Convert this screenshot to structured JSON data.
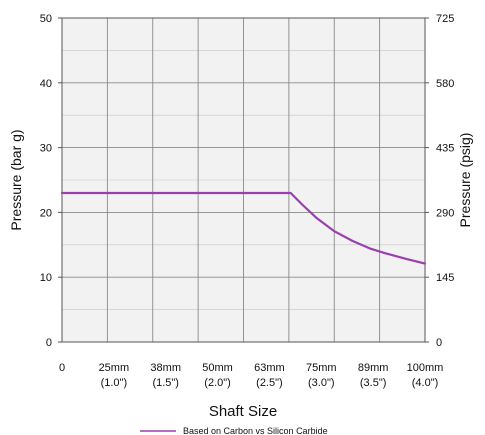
{
  "chart_data": {
    "type": "line",
    "xlabel": "Shaft Size",
    "ylabel": "Pressure (bar g)",
    "ylabel_right": "Pressure (psig)",
    "ylim": [
      0,
      50
    ],
    "y_ticks": [
      0,
      10,
      20,
      30,
      40,
      50
    ],
    "y2lim": [
      0,
      725
    ],
    "y2_ticks": [
      0,
      145,
      290,
      435,
      580,
      725
    ],
    "xlim": [
      0,
      100
    ],
    "x_ticks": [
      {
        "value": 0,
        "label": "0",
        "sub": ""
      },
      {
        "value": 25,
        "label": "25mm",
        "sub": "(1.0\")"
      },
      {
        "value": 38,
        "label": "38mm",
        "sub": "(1.5\")"
      },
      {
        "value": 50,
        "label": "50mm",
        "sub": "(2.0\")"
      },
      {
        "value": 63,
        "label": "63mm",
        "sub": "(2.5\")"
      },
      {
        "value": 75,
        "label": "75mm",
        "sub": "(3.0\")"
      },
      {
        "value": 89,
        "label": "89mm",
        "sub": "(3.5\")"
      },
      {
        "value": 100,
        "label": "100mm",
        "sub": "(4.0\")"
      }
    ],
    "grid": true,
    "legend_position": "bottom-center",
    "series": [
      {
        "name": "Based on Carbon vs Silicon Carbide",
        "color": "#9a3fae",
        "x": [
          0,
          63,
          66,
          70,
          75,
          80,
          85,
          89,
          95,
          100
        ],
        "y": [
          23,
          23,
          21.3,
          19.2,
          17.1,
          15.6,
          14.4,
          13.7,
          12.8,
          12.1
        ]
      }
    ]
  }
}
